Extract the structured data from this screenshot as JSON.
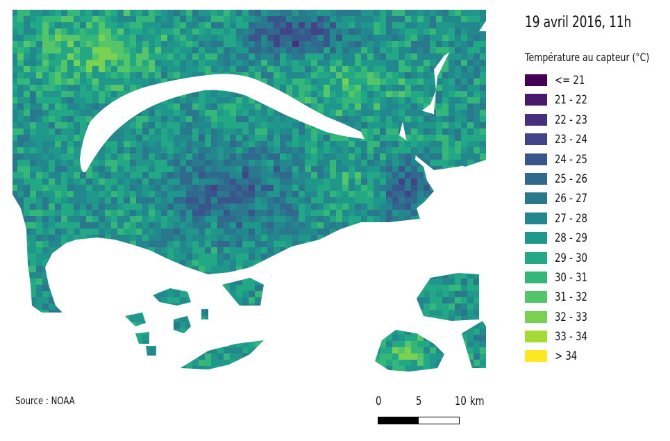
{
  "map": {
    "title": "19 avril 2016, 11h",
    "legend_title": "Température au capteur (°C)",
    "legend": [
      {
        "label": "<= 21",
        "color": "#440154"
      },
      {
        "label": "21 - 22",
        "color": "#481a6c"
      },
      {
        "label": "22 - 23",
        "color": "#472f7d"
      },
      {
        "label": "23 - 24",
        "color": "#414487"
      },
      {
        "label": "24 - 25",
        "color": "#39568c"
      },
      {
        "label": "25 - 26",
        "color": "#31688e"
      },
      {
        "label": "26 - 27",
        "color": "#2a788e"
      },
      {
        "label": "27 - 28",
        "color": "#23888e"
      },
      {
        "label": "28 - 29",
        "color": "#1f988b"
      },
      {
        "label": "29 - 30",
        "color": "#22a884"
      },
      {
        "label": "30 - 31",
        "color": "#35b779"
      },
      {
        "label": "31 - 32",
        "color": "#54c568"
      },
      {
        "label": "32 - 33",
        "color": "#7ad151"
      },
      {
        "label": "33 - 34",
        "color": "#a5db36"
      },
      {
        "label": "> 34",
        "color": "#fde725"
      }
    ],
    "source": "Source : NOAA",
    "scale_labels": {
      "zero": "0",
      "five": "5",
      "ten": "10",
      "unit": "km"
    }
  }
}
